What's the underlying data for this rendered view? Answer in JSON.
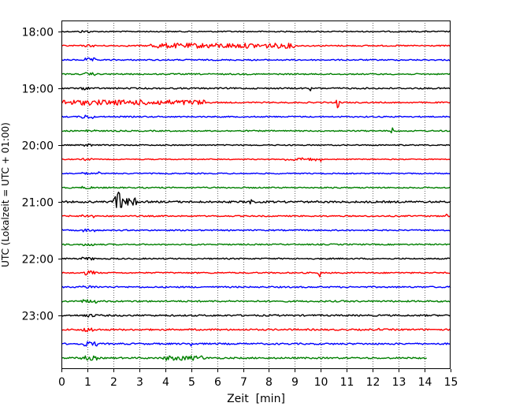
{
  "chart_data": {
    "type": "line",
    "title": "",
    "xlabel": "Zeit  [min]",
    "ylabel": "UTC (Lokalzeit = UTC + 01:00)",
    "xlim": [
      0,
      15
    ],
    "x_ticks": [
      0,
      1,
      2,
      3,
      4,
      5,
      6,
      7,
      8,
      9,
      10,
      11,
      12,
      13,
      14,
      15
    ],
    "x_tick_labels": [
      "0",
      "1",
      "2",
      "3",
      "4",
      "5",
      "6",
      "7",
      "8",
      "9",
      "10",
      "11",
      "12",
      "13",
      "14",
      "15"
    ],
    "y_ticks": [
      "18:00",
      "19:00",
      "20:00",
      "21:00",
      "22:00",
      "23:00"
    ],
    "vertical_grid": "dotted",
    "row_interval_min": 15,
    "color_cycle": [
      "#000000",
      "#ff0000",
      "#0000ff",
      "#008000"
    ],
    "series": [
      {
        "time": "18:00",
        "color": "#000000",
        "end_min": 15,
        "noise": 0.7,
        "bursts": [
          [
            0.7,
            0.4,
            1.6
          ]
        ],
        "events": []
      },
      {
        "time": "18:15",
        "color": "#ff0000",
        "end_min": 15,
        "noise": 0.8,
        "bursts": [
          [
            3.4,
            5.6,
            3.2
          ],
          [
            0.9,
            0.4,
            1.5
          ]
        ],
        "events": []
      },
      {
        "time": "18:30",
        "color": "#0000ff",
        "end_min": 15,
        "noise": 0.8,
        "bursts": [
          [
            0.9,
            0.4,
            2.5
          ]
        ],
        "events": []
      },
      {
        "time": "18:45",
        "color": "#008000",
        "end_min": 15,
        "noise": 0.8,
        "bursts": [
          [
            0.9,
            0.4,
            2.0
          ]
        ],
        "events": []
      },
      {
        "time": "19:00",
        "color": "#000000",
        "end_min": 15,
        "noise": 0.9,
        "bursts": [
          [
            0.8,
            0.4,
            2.0
          ]
        ],
        "events": [
          [
            9.6,
            3.5,
            0.07
          ]
        ]
      },
      {
        "time": "19:15",
        "color": "#ff0000",
        "end_min": 15,
        "noise": 0.8,
        "bursts": [
          [
            0.0,
            5.6,
            3.3
          ]
        ],
        "events": [
          [
            10.65,
            12,
            0.08
          ]
        ]
      },
      {
        "time": "19:30",
        "color": "#0000ff",
        "end_min": 15,
        "noise": 0.8,
        "bursts": [
          [
            0.8,
            0.5,
            2.5
          ]
        ],
        "events": []
      },
      {
        "time": "19:45",
        "color": "#008000",
        "end_min": 15,
        "noise": 0.8,
        "bursts": [
          [
            0.9,
            0.4,
            2.0
          ]
        ],
        "events": [
          [
            12.75,
            6,
            0.06
          ]
        ]
      },
      {
        "time": "20:00",
        "color": "#000000",
        "end_min": 15,
        "noise": 0.7,
        "bursts": [
          [
            0.8,
            0.4,
            1.7
          ]
        ],
        "events": []
      },
      {
        "time": "20:15",
        "color": "#ff0000",
        "end_min": 15,
        "noise": 0.6,
        "bursts": [
          [
            0.8,
            0.4,
            1.5
          ],
          [
            8.6,
            1.2,
            2.0
          ]
        ],
        "events": [
          [
            10.0,
            3,
            0.05
          ]
        ]
      },
      {
        "time": "20:30",
        "color": "#0000ff",
        "end_min": 15,
        "noise": 0.7,
        "bursts": [
          [
            0.8,
            0.4,
            1.4
          ]
        ],
        "events": [
          [
            1.45,
            4,
            0.05
          ]
        ]
      },
      {
        "time": "20:45",
        "color": "#008000",
        "end_min": 15,
        "noise": 0.8,
        "bursts": [
          [
            0.8,
            0.4,
            1.7
          ]
        ],
        "events": []
      },
      {
        "time": "21:00",
        "color": "#000000",
        "end_min": 15,
        "noise": 0.9,
        "bursts": [
          [
            0.0,
            15,
            1.2
          ],
          [
            2.1,
            0.8,
            5.0
          ]
        ],
        "events": [
          [
            2.2,
            14,
            0.25
          ],
          [
            7.3,
            4,
            0.08
          ]
        ]
      },
      {
        "time": "21:15",
        "color": "#ff0000",
        "end_min": 15,
        "noise": 0.8,
        "bursts": [
          [
            0.8,
            0.5,
            2.0
          ]
        ],
        "events": [
          [
            14.85,
            4,
            0.05
          ]
        ]
      },
      {
        "time": "21:30",
        "color": "#0000ff",
        "end_min": 15,
        "noise": 0.8,
        "bursts": [
          [
            0.8,
            0.5,
            2.0
          ]
        ],
        "events": []
      },
      {
        "time": "21:45",
        "color": "#008000",
        "end_min": 15,
        "noise": 0.8,
        "bursts": [
          [
            0.8,
            0.5,
            1.7
          ]
        ],
        "events": []
      },
      {
        "time": "22:00",
        "color": "#000000",
        "end_min": 15,
        "noise": 0.8,
        "bursts": [
          [
            0.8,
            0.5,
            1.8
          ]
        ],
        "events": []
      },
      {
        "time": "22:15",
        "color": "#ff0000",
        "end_min": 15,
        "noise": 0.8,
        "bursts": [
          [
            0.8,
            0.6,
            2.6
          ]
        ],
        "events": [
          [
            9.95,
            7,
            0.06
          ]
        ]
      },
      {
        "time": "22:30",
        "color": "#0000ff",
        "end_min": 15,
        "noise": 0.9,
        "bursts": [
          [
            0.8,
            0.6,
            2.0
          ]
        ],
        "events": []
      },
      {
        "time": "22:45",
        "color": "#008000",
        "end_min": 15,
        "noise": 1.0,
        "bursts": [
          [
            0.8,
            0.6,
            2.3
          ]
        ],
        "events": []
      },
      {
        "time": "23:00",
        "color": "#000000",
        "end_min": 15,
        "noise": 1.0,
        "bursts": [
          [
            0.8,
            0.6,
            2.0
          ]
        ],
        "events": []
      },
      {
        "time": "23:15",
        "color": "#ff0000",
        "end_min": 15,
        "noise": 1.0,
        "bursts": [
          [
            0.8,
            0.6,
            2.7
          ]
        ],
        "events": [
          [
            12.25,
            3,
            0.05
          ]
        ]
      },
      {
        "time": "23:30",
        "color": "#0000ff",
        "end_min": 15,
        "noise": 1.0,
        "bursts": [
          [
            0.7,
            0.7,
            3.0
          ]
        ],
        "events": [
          [
            5.0,
            3,
            0.05
          ]
        ]
      },
      {
        "time": "23:45",
        "color": "#008000",
        "end_min": 14.1,
        "noise": 1.0,
        "bursts": [
          [
            0.7,
            0.7,
            2.8
          ],
          [
            3.9,
            1.7,
            3.0
          ]
        ],
        "events": []
      }
    ]
  }
}
